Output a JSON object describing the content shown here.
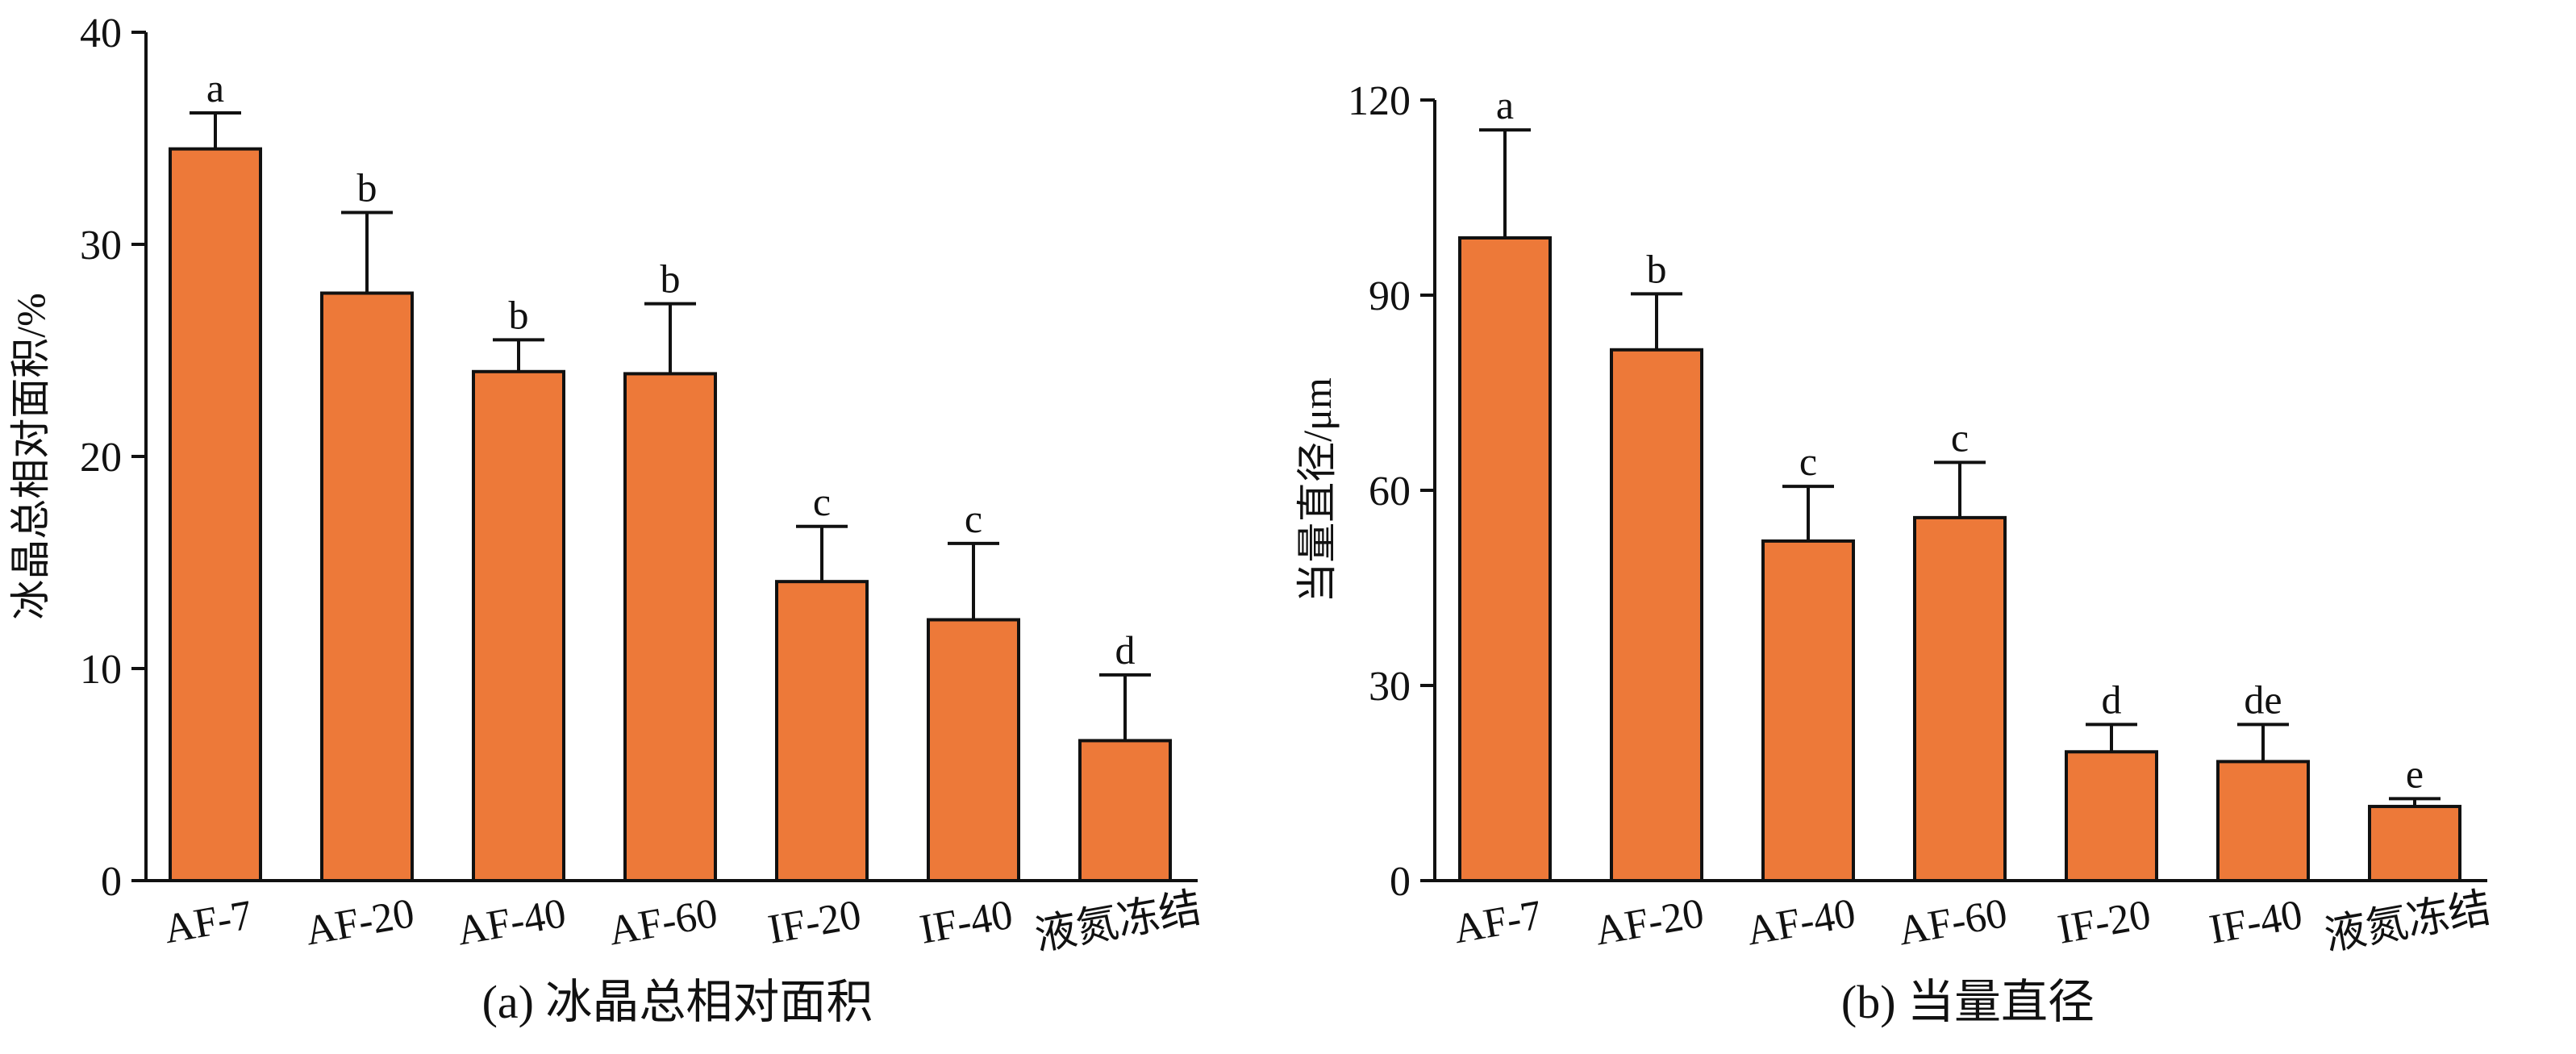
{
  "colors": {
    "bar": "#ED7939",
    "stroke": "#111111"
  },
  "chart_data": [
    {
      "type": "bar",
      "caption": "(a) 冰晶总相对面积",
      "ylabel": "冰晶总相对面积/%",
      "xlabel": "",
      "ylim": [
        0,
        40
      ],
      "yticks": [
        "0",
        "10",
        "20",
        "30",
        "40"
      ],
      "categories": [
        "AF-7",
        "AF-20",
        "AF-40",
        "AF-60",
        "IF-20",
        "IF-40",
        "液氮冻结"
      ],
      "values": [
        34.5,
        27.7,
        24.0,
        23.9,
        14.1,
        12.3,
        6.6
      ],
      "errors": [
        1.7,
        3.8,
        1.5,
        3.3,
        2.6,
        3.6,
        3.1
      ],
      "significance": [
        "a",
        "b",
        "b",
        "b",
        "c",
        "c",
        "d"
      ],
      "grid": false,
      "legend": "none"
    },
    {
      "type": "bar",
      "caption": "(b) 当量直径",
      "ylabel": "当量直径/μm",
      "xlabel": "",
      "ylim": [
        0,
        120
      ],
      "yticks": [
        "0",
        "30",
        "60",
        "90",
        "120"
      ],
      "categories": [
        "AF-7",
        "AF-20",
        "AF-40",
        "AF-60",
        "IF-20",
        "IF-40",
        "液氮冻结"
      ],
      "values": [
        98.8,
        81.6,
        52.2,
        55.8,
        19.8,
        18.3,
        11.4
      ],
      "errors": [
        16.6,
        8.6,
        8.4,
        8.5,
        4.2,
        5.7,
        1.2
      ],
      "significance": [
        "a",
        "b",
        "c",
        "c",
        "d",
        "de",
        "e"
      ],
      "grid": false,
      "legend": "none"
    }
  ]
}
